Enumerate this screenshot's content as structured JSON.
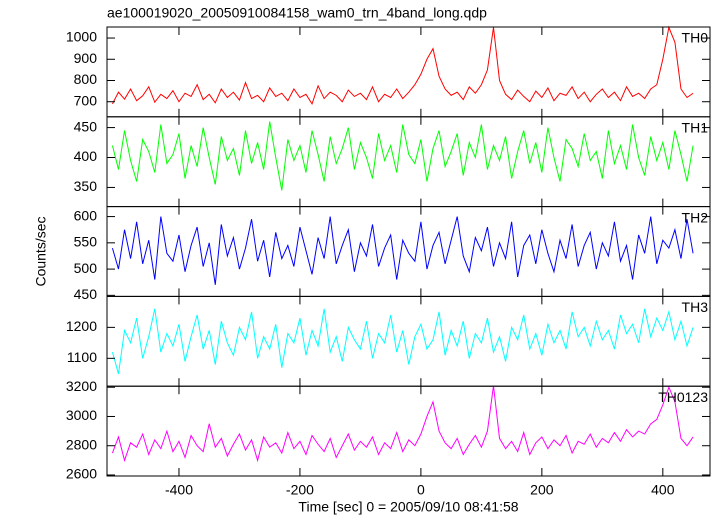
{
  "chart_data": [
    {
      "type": "line",
      "title": "ae100019020_20050910084158_wam0_trn_4band_long.qdp",
      "x": [
        -510,
        -500,
        -490,
        -480,
        -470,
        -460,
        -450,
        -440,
        -430,
        -420,
        -410,
        -400,
        -390,
        -380,
        -370,
        -360,
        -350,
        -340,
        -330,
        -320,
        -310,
        -300,
        -290,
        -280,
        -270,
        -260,
        -250,
        -240,
        -230,
        -220,
        -210,
        -200,
        -190,
        -180,
        -170,
        -160,
        -150,
        -140,
        -130,
        -120,
        -110,
        -100,
        -90,
        -80,
        -70,
        -60,
        -50,
        -40,
        -30,
        -20,
        -10,
        0,
        10,
        20,
        30,
        40,
        50,
        60,
        70,
        80,
        90,
        100,
        110,
        120,
        130,
        140,
        150,
        160,
        170,
        180,
        190,
        200,
        210,
        220,
        230,
        240,
        250,
        260,
        270,
        280,
        290,
        300,
        310,
        320,
        330,
        340,
        350,
        360,
        370,
        380,
        390,
        400,
        410,
        420,
        430,
        440,
        450
      ],
      "series": [
        {
          "name": "TH0",
          "color": "#ff0000",
          "values": [
            690,
            745,
            712,
            760,
            705,
            728,
            770,
            698,
            735,
            715,
            752,
            700,
            740,
            725,
            780,
            710,
            735,
            695,
            760,
            720,
            745,
            708,
            790,
            715,
            730,
            700,
            765,
            725,
            740,
            705,
            760,
            720,
            735,
            690,
            775,
            715,
            745,
            730,
            700,
            755,
            725,
            740,
            710,
            770,
            700,
            735,
            720,
            760,
            715,
            745,
            780,
            830,
            900,
            950,
            820,
            760,
            730,
            745,
            710,
            770,
            740,
            780,
            850,
            1050,
            800,
            735,
            710,
            755,
            725,
            700,
            750,
            720,
            765,
            705,
            740,
            730,
            770,
            715,
            745,
            700,
            735,
            760,
            720,
            745,
            705,
            770,
            725,
            740,
            715,
            760,
            780,
            900,
            1050,
            980,
            760,
            720,
            740
          ]
        }
      ],
      "xlim": [
        -519,
        478
      ],
      "ylim": [
        629,
        1052
      ],
      "yticks": [
        700,
        800,
        900,
        1000
      ]
    },
    {
      "type": "line",
      "x": [
        -510,
        -500,
        -490,
        -480,
        -470,
        -460,
        -450,
        -440,
        -430,
        -420,
        -410,
        -400,
        -390,
        -380,
        -370,
        -360,
        -350,
        -340,
        -330,
        -320,
        -310,
        -300,
        -290,
        -280,
        -270,
        -260,
        -250,
        -240,
        -230,
        -220,
        -210,
        -200,
        -190,
        -180,
        -170,
        -160,
        -150,
        -140,
        -130,
        -120,
        -110,
        -100,
        -90,
        -80,
        -70,
        -60,
        -50,
        -40,
        -30,
        -20,
        -10,
        0,
        10,
        20,
        30,
        40,
        50,
        60,
        70,
        80,
        90,
        100,
        110,
        120,
        130,
        140,
        150,
        160,
        170,
        180,
        190,
        200,
        210,
        220,
        230,
        240,
        250,
        260,
        270,
        280,
        290,
        300,
        310,
        320,
        330,
        340,
        350,
        360,
        370,
        380,
        390,
        400,
        410,
        420,
        430,
        440,
        450
      ],
      "series": [
        {
          "name": "TH1",
          "color": "#00ff00",
          "values": [
            420,
            380,
            445,
            395,
            360,
            430,
            410,
            375,
            455,
            390,
            405,
            440,
            365,
            420,
            385,
            450,
            400,
            355,
            435,
            395,
            415,
            370,
            445,
            390,
            425,
            380,
            460,
            400,
            345,
            430,
            395,
            420,
            375,
            445,
            405,
            360,
            435,
            390,
            415,
            450,
            380,
            425,
            400,
            365,
            440,
            395,
            420,
            375,
            455,
            405,
            390,
            430,
            360,
            415,
            445,
            385,
            410,
            440,
            370,
            425,
            400,
            455,
            380,
            420,
            395,
            435,
            365,
            410,
            445,
            390,
            425,
            375,
            450,
            400,
            360,
            430,
            415,
            385,
            440,
            395,
            410,
            365,
            445,
            390,
            420,
            380,
            455,
            400,
            370,
            435,
            395,
            425,
            380,
            445,
            405,
            360,
            420
          ]
        }
      ],
      "xlim": [
        -519,
        478
      ],
      "ylim": [
        318,
        468
      ],
      "yticks": [
        350,
        400,
        450
      ]
    },
    {
      "type": "line",
      "y_label": "Counts/sec",
      "x": [
        -510,
        -500,
        -490,
        -480,
        -470,
        -460,
        -450,
        -440,
        -430,
        -420,
        -410,
        -400,
        -390,
        -380,
        -370,
        -360,
        -350,
        -340,
        -330,
        -320,
        -310,
        -300,
        -290,
        -280,
        -270,
        -260,
        -250,
        -240,
        -230,
        -220,
        -210,
        -200,
        -190,
        -180,
        -170,
        -160,
        -150,
        -140,
        -130,
        -120,
        -110,
        -100,
        -90,
        -80,
        -70,
        -60,
        -50,
        -40,
        -30,
        -20,
        -10,
        0,
        10,
        20,
        30,
        40,
        50,
        60,
        70,
        80,
        90,
        100,
        110,
        120,
        130,
        140,
        150,
        160,
        170,
        180,
        190,
        200,
        210,
        220,
        230,
        240,
        250,
        260,
        270,
        280,
        290,
        300,
        310,
        320,
        330,
        340,
        350,
        360,
        370,
        380,
        390,
        400,
        410,
        420,
        430,
        440,
        450
      ],
      "series": [
        {
          "name": "TH2",
          "color": "#0000ff",
          "values": [
            540,
            500,
            575,
            520,
            590,
            510,
            555,
            480,
            600,
            530,
            515,
            565,
            495,
            545,
            580,
            505,
            550,
            470,
            585,
            525,
            560,
            500,
            540,
            595,
            515,
            555,
            485,
            570,
            520,
            545,
            505,
            580,
            535,
            490,
            560,
            520,
            600,
            510,
            545,
            575,
            495,
            550,
            525,
            585,
            505,
            540,
            565,
            480,
            555,
            530,
            515,
            590,
            500,
            545,
            570,
            510,
            555,
            600,
            525,
            495,
            560,
            535,
            580,
            505,
            550,
            520,
            590,
            485,
            545,
            565,
            510,
            575,
            530,
            495,
            555,
            520,
            585,
            505,
            545,
            570,
            500,
            550,
            525,
            590,
            515,
            545,
            480,
            565,
            530,
            600,
            510,
            555,
            540,
            575,
            520,
            595,
            530
          ]
        }
      ],
      "xlim": [
        -519,
        478
      ],
      "ylim": [
        448,
        619
      ],
      "yticks": [
        450,
        500,
        550,
        600
      ]
    },
    {
      "type": "line",
      "x": [
        -510,
        -500,
        -490,
        -480,
        -470,
        -460,
        -450,
        -440,
        -430,
        -420,
        -410,
        -400,
        -390,
        -380,
        -370,
        -360,
        -350,
        -340,
        -330,
        -320,
        -310,
        -300,
        -290,
        -280,
        -270,
        -260,
        -250,
        -240,
        -230,
        -220,
        -210,
        -200,
        -190,
        -180,
        -170,
        -160,
        -150,
        -140,
        -130,
        -120,
        -110,
        -100,
        -90,
        -80,
        -70,
        -60,
        -50,
        -40,
        -30,
        -20,
        -10,
        0,
        10,
        20,
        30,
        40,
        50,
        60,
        70,
        80,
        90,
        100,
        110,
        120,
        130,
        140,
        150,
        160,
        170,
        180,
        190,
        200,
        210,
        220,
        230,
        240,
        250,
        260,
        270,
        280,
        290,
        300,
        310,
        320,
        330,
        340,
        350,
        360,
        370,
        380,
        390,
        400,
        410,
        420,
        430,
        440,
        450
      ],
      "series": [
        {
          "name": "TH3",
          "color": "#00ffff",
          "values": [
            1120,
            1050,
            1190,
            1150,
            1230,
            1100,
            1170,
            1260,
            1120,
            1180,
            1140,
            1210,
            1090,
            1170,
            1240,
            1130,
            1190,
            1080,
            1220,
            1150,
            1110,
            1200,
            1160,
            1250,
            1100,
            1170,
            1130,
            1210,
            1070,
            1180,
            1150,
            1230,
            1110,
            1190,
            1140,
            1260,
            1120,
            1170,
            1090,
            1200,
            1160,
            1130,
            1220,
            1100,
            1180,
            1150,
            1240,
            1120,
            1190,
            1080,
            1170,
            1210,
            1130,
            1160,
            1250,
            1110,
            1190,
            1140,
            1220,
            1100,
            1180,
            1150,
            1230,
            1120,
            1170,
            1090,
            1200,
            1160,
            1240,
            1130,
            1180,
            1110,
            1210,
            1150,
            1190,
            1130,
            1250,
            1170,
            1200,
            1140,
            1220,
            1160,
            1190,
            1130,
            1240,
            1180,
            1210,
            1150,
            1260,
            1170,
            1230,
            1190,
            1250,
            1160,
            1220,
            1140,
            1200
          ]
        }
      ],
      "xlim": [
        -519,
        478
      ],
      "ylim": [
        1010,
        1300
      ],
      "yticks": [
        1100,
        1200
      ]
    },
    {
      "type": "line",
      "x_label": "Time [sec] 0 = 2005/09/10 08:41:58",
      "x": [
        -510,
        -500,
        -490,
        -480,
        -470,
        -460,
        -450,
        -440,
        -430,
        -420,
        -410,
        -400,
        -390,
        -380,
        -370,
        -360,
        -350,
        -340,
        -330,
        -320,
        -310,
        -300,
        -290,
        -280,
        -270,
        -260,
        -250,
        -240,
        -230,
        -220,
        -210,
        -200,
        -190,
        -180,
        -170,
        -160,
        -150,
        -140,
        -130,
        -120,
        -110,
        -100,
        -90,
        -80,
        -70,
        -60,
        -50,
        -40,
        -30,
        -20,
        -10,
        0,
        10,
        20,
        30,
        40,
        50,
        60,
        70,
        80,
        90,
        100,
        110,
        120,
        130,
        140,
        150,
        160,
        170,
        180,
        190,
        200,
        210,
        220,
        230,
        240,
        250,
        260,
        270,
        280,
        290,
        300,
        310,
        320,
        330,
        340,
        350,
        360,
        370,
        380,
        390,
        400,
        410,
        420,
        430,
        440,
        450
      ],
      "series": [
        {
          "name": "TH0123",
          "color": "#ff00ff",
          "values": [
            2750,
            2860,
            2700,
            2820,
            2790,
            2880,
            2740,
            2840,
            2780,
            2900,
            2760,
            2830,
            2720,
            2870,
            2800,
            2760,
            2950,
            2790,
            2850,
            2730,
            2810,
            2880,
            2770,
            2840,
            2700,
            2860,
            2790,
            2820,
            2750,
            2890,
            2780,
            2830,
            2740,
            2870,
            2810,
            2760,
            2850,
            2720,
            2800,
            2880,
            2770,
            2830,
            2790,
            2860,
            2740,
            2820,
            2780,
            2890,
            2760,
            2840,
            2800,
            2880,
            3000,
            3100,
            2900,
            2820,
            2780,
            2850,
            2740,
            2810,
            2870,
            2790,
            2900,
            3210,
            2850,
            2780,
            2830,
            2760,
            2890,
            2740,
            2820,
            2860,
            2780,
            2840,
            2800,
            2870,
            2750,
            2830,
            2810,
            2880,
            2790,
            2850,
            2820,
            2890,
            2830,
            2910,
            2860,
            2900,
            2880,
            2950,
            2980,
            3080,
            3200,
            3100,
            2850,
            2800,
            2860
          ]
        }
      ],
      "xlim": [
        -519,
        478
      ],
      "ylim": [
        2593,
        3207
      ],
      "yticks": [
        2600,
        2800,
        3000,
        3200
      ],
      "xticks": [
        -400,
        -200,
        0,
        200,
        400
      ]
    }
  ]
}
